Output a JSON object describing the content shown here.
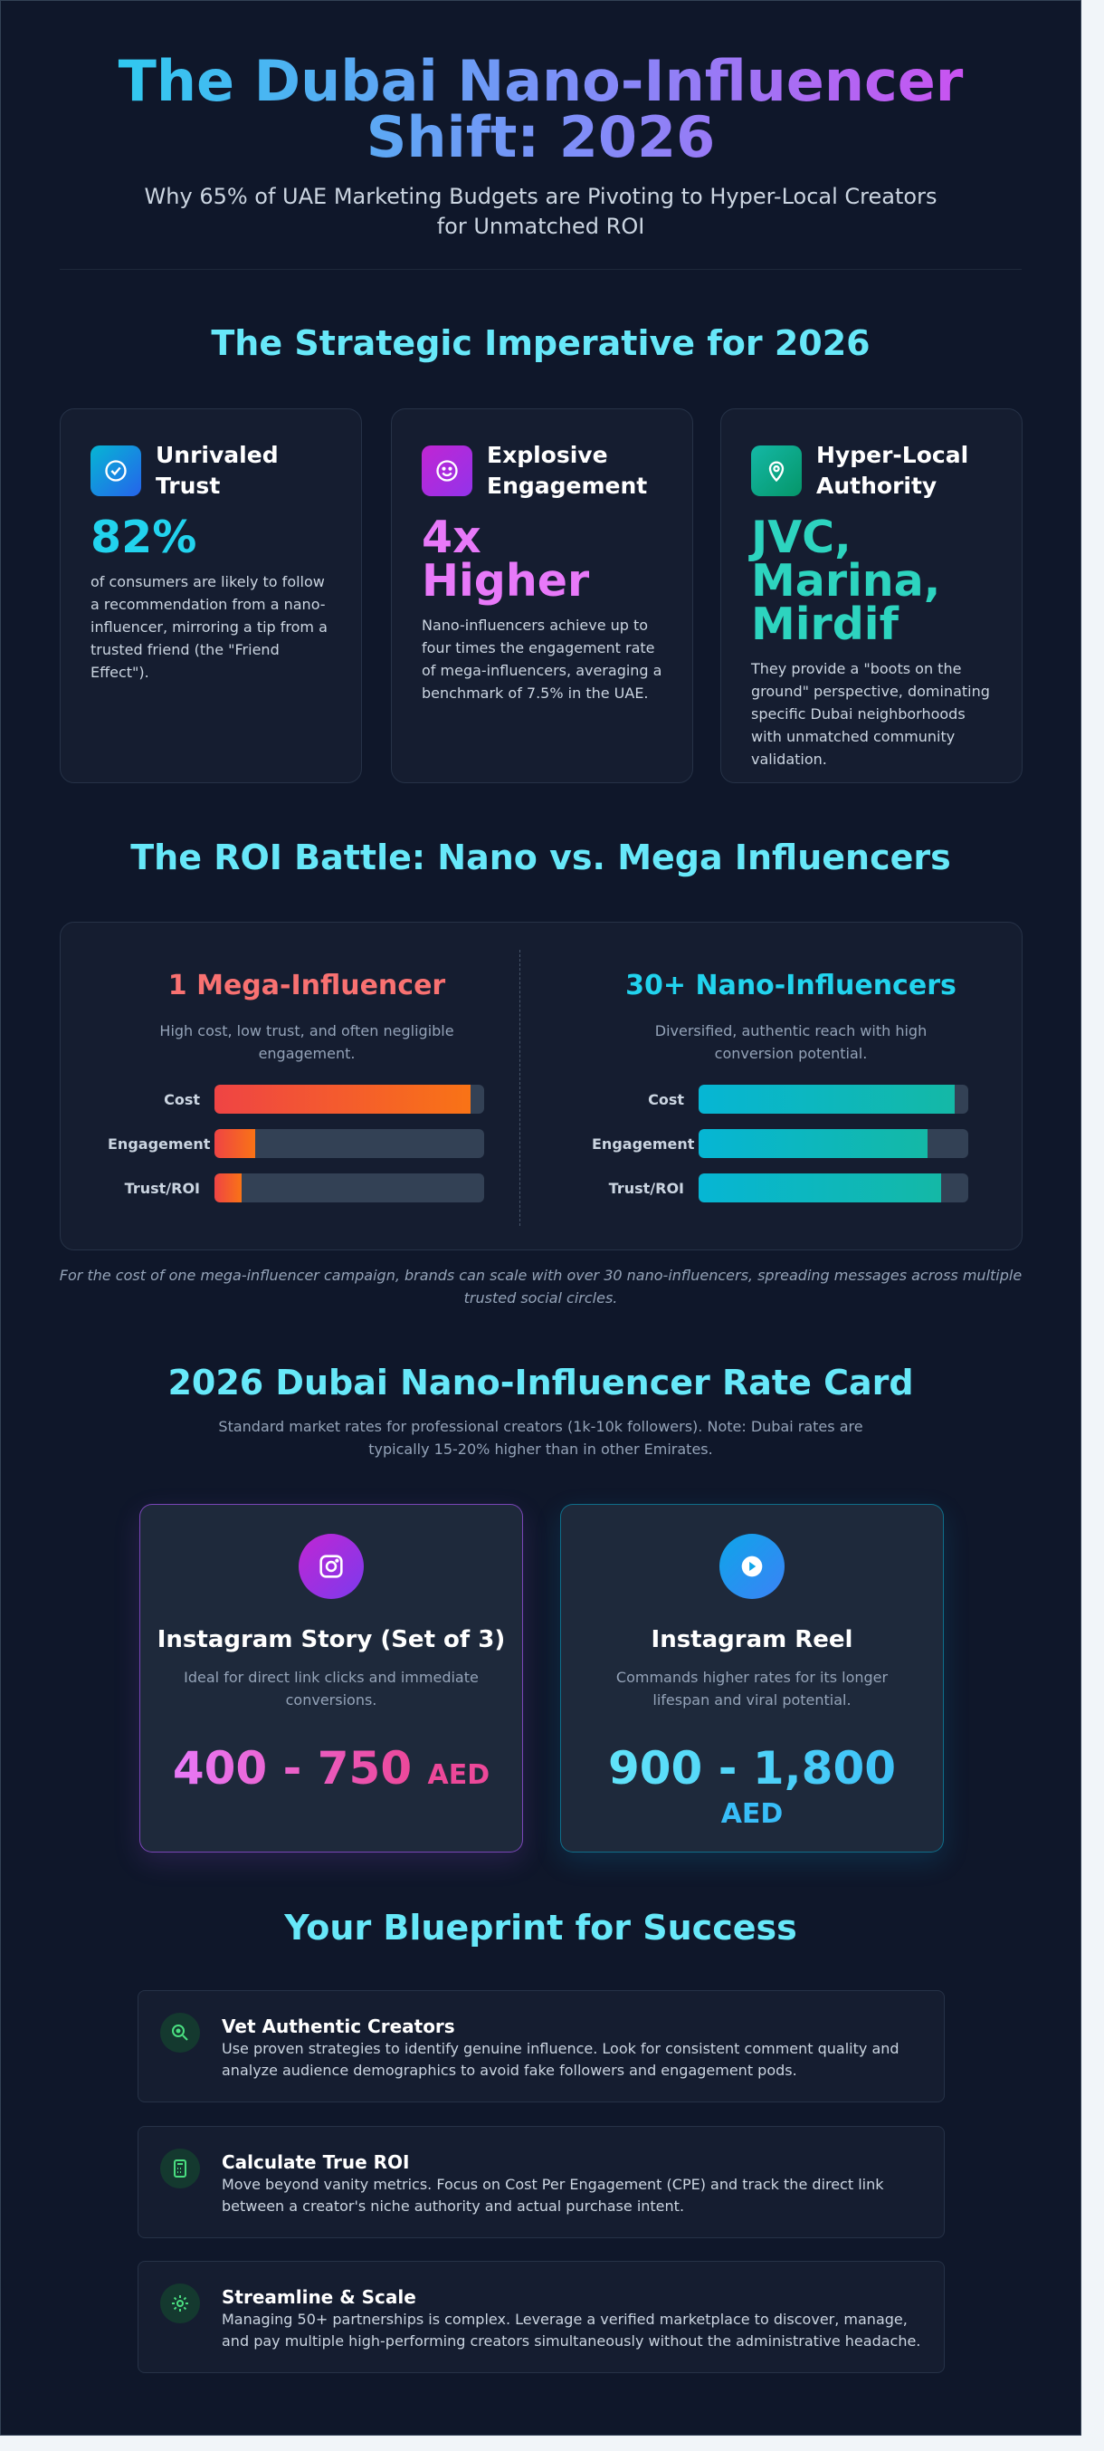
{
  "header": {
    "title": "The Dubai Nano-Influencer Shift: 2026",
    "subtitle": "Why 65% of UAE Marketing Budgets are Pivoting to Hyper-Local Creators for Unmatched ROI"
  },
  "imperative": {
    "heading": "The Strategic Imperative for 2026",
    "cards": [
      {
        "icon": "check-circle-icon",
        "title": "Unrivaled Trust",
        "stat": "82%",
        "stat_color": "#22d3ee",
        "text": "of consumers are likely to follow a recommendation from a nano-influencer, mirroring a tip from a trusted friend (the \"Friend Effect\")."
      },
      {
        "icon": "smile-icon",
        "title": "Explosive Engagement",
        "stat": "4x Higher",
        "stat_color": "#e879f9",
        "text": "Nano-influencers achieve up to four times the engagement rate of mega-influencers, averaging a benchmark of 7.5% in the UAE."
      },
      {
        "icon": "map-pin-icon",
        "title": "Hyper-Local Authority",
        "stat": "JVC, Marina, Mirdif",
        "stat_color": "#2dd4bf",
        "text": "They provide a \"boots on the ground\" perspective, dominating specific Dubai neighborhoods with unmatched community validation."
      }
    ]
  },
  "roi": {
    "heading": "The ROI Battle: Nano vs. Mega Influencers",
    "mega": {
      "title": "1 Mega-Influencer",
      "desc": "High cost, low trust, and often negligible engagement.",
      "bars": [
        {
          "label": "Cost",
          "percent": 95
        },
        {
          "label": "Engagement",
          "percent": 15
        },
        {
          "label": "Trust/ROI",
          "percent": 10
        }
      ]
    },
    "nano": {
      "title": "30+ Nano-Influencers",
      "desc": "Diversified, authentic reach with high conversion potential.",
      "bars": [
        {
          "label": "Cost",
          "percent": 95
        },
        {
          "label": "Engagement",
          "percent": 85
        },
        {
          "label": "Trust/ROI",
          "percent": 90
        }
      ]
    },
    "caption": "For the cost of one mega-influencer campaign, brands can scale with over 30 nano-influencers, spreading messages across multiple trusted social circles."
  },
  "rates": {
    "heading": "2026 Dubai Nano-Influencer Rate Card",
    "subtitle": "Standard market rates for professional creators (1k-10k followers). Note: Dubai rates are typically 15-20% higher than in other Emirates.",
    "cards": [
      {
        "icon": "instagram-icon",
        "title": "Instagram Story (Set of 3)",
        "desc": "Ideal for direct link clicks and immediate conversions.",
        "price": "400 - 750",
        "currency": "AED"
      },
      {
        "icon": "play-icon",
        "title": "Instagram Reel",
        "desc": "Commands higher rates for its longer lifespan and viral potential.",
        "price": "900 - 1,800",
        "currency": "AED"
      }
    ]
  },
  "blueprint": {
    "heading": "Your Blueprint for Success",
    "items": [
      {
        "icon": "search-icon",
        "title": "Vet Authentic Creators",
        "text": "Use proven strategies to identify genuine influence. Look for consistent comment quality and analyze audience demographics to avoid fake followers and engagement pods."
      },
      {
        "icon": "calculator-icon",
        "title": "Calculate True ROI",
        "text": "Move beyond vanity metrics. Focus on Cost Per Engagement (CPE) and track the direct link between a creator's niche authority and actual purchase intent."
      },
      {
        "icon": "gear-icon",
        "title": "Streamline & Scale",
        "text": "Managing 50+ partnerships is complex. Leverage a verified marketplace to discover, manage, and pay multiple high-performing creators simultaneously without the administrative headache."
      }
    ]
  },
  "colors": {
    "background": "#0f172a",
    "accent": "#67e8f9",
    "mega": "#f87171",
    "nano": "#22d3ee"
  }
}
